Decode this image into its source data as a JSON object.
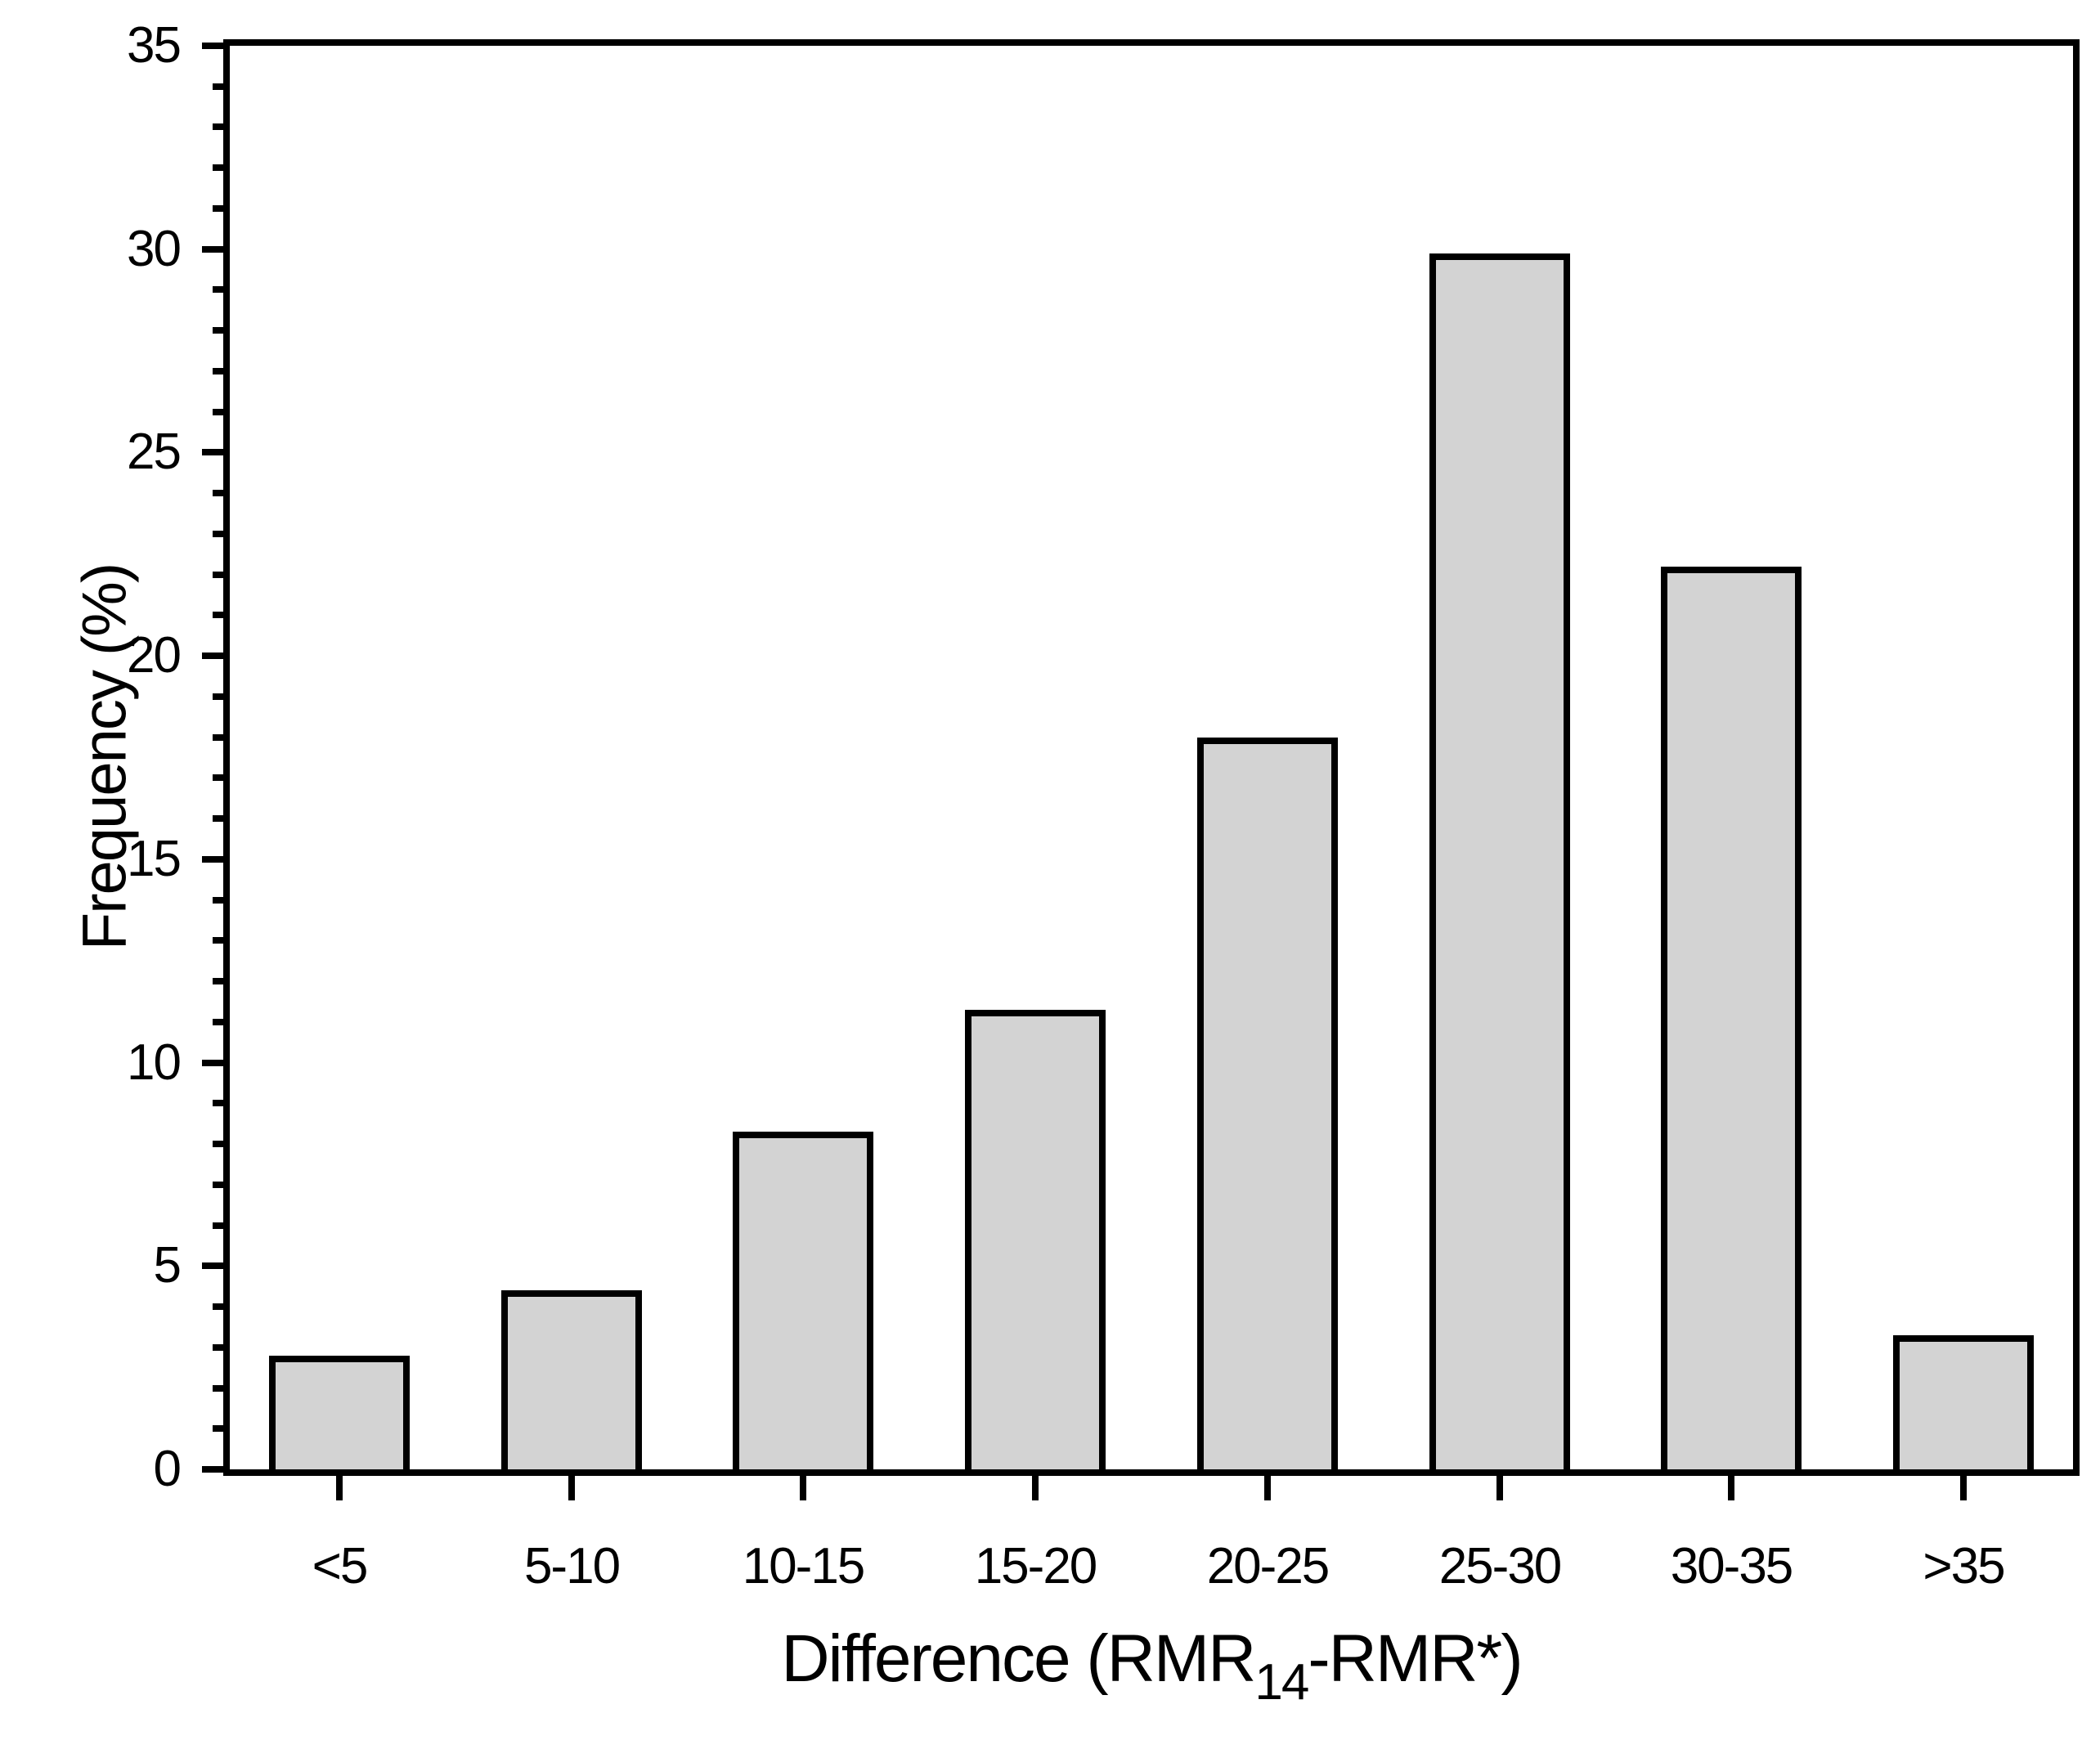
{
  "chart_data": {
    "type": "bar",
    "title": "",
    "categories": [
      "<5",
      "5-10",
      "10-15",
      "15-20",
      "20-25",
      "25-30",
      "30-35",
      ">35"
    ],
    "values": [
      2.8,
      4.4,
      8.3,
      11.3,
      18.0,
      29.9,
      22.2,
      3.3
    ],
    "xlabel": "Difference (RMR14-RMR*)",
    "xlabel_parts": {
      "prefix": "Difference (RMR",
      "subscript": "14",
      "suffix": "-RMR*)"
    },
    "ylabel": "Frequency (%)",
    "ylim": [
      0,
      35
    ],
    "ytick_major_step": 5,
    "ytick_minor_step": 1,
    "ytick_labels": [
      "0",
      "5",
      "10",
      "15",
      "20",
      "25",
      "30",
      "35"
    ],
    "grid": false,
    "legend": false,
    "bar_fill_color": "#d3d3d3",
    "bar_border_color": "#000000",
    "axis_color": "#000000",
    "background_color": "#ffffff"
  }
}
